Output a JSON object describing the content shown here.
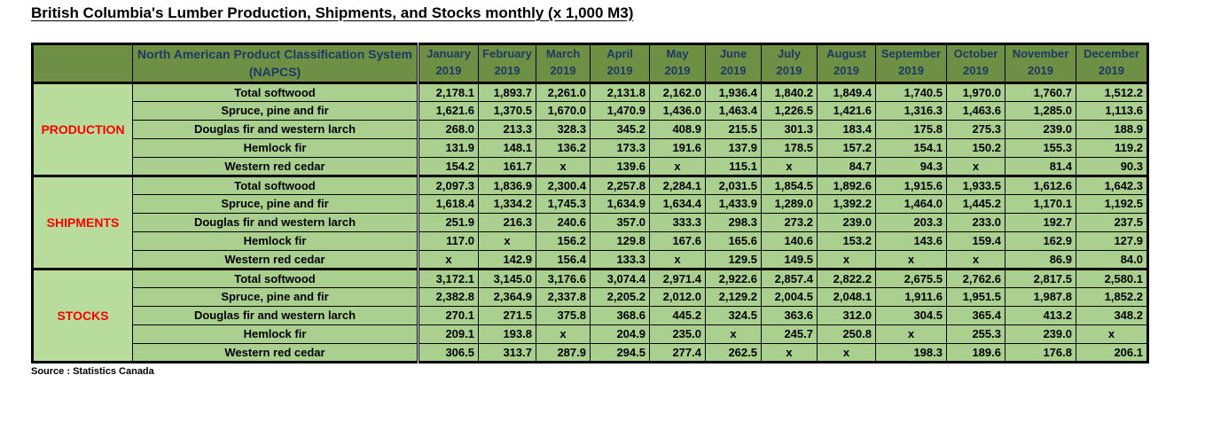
{
  "title": "British Columbia's Lumber Production, Shipments, and Stocks monthly (x 1,000 M3)",
  "source_note": "Source : Statistics Canada",
  "colors": {
    "header_bg": "#6e9044",
    "cell_bg": "#a9d08e",
    "group_col_bg": "#b7dc9b",
    "header_text": "#1f3864",
    "group_label_text": "#ff0000",
    "border": "#000000",
    "page_bg": "#ffffff"
  },
  "chart_data": {
    "type": "table",
    "title": "British Columbia's Lumber Production, Shipments, and Stocks monthly (x 1,000 M3)",
    "unit": "x 1,000 M3",
    "column_header_line1": "North American Product Classification System",
    "column_header_line2": "(NAPCS)",
    "year": "2019",
    "months": [
      "January",
      "February",
      "March",
      "April",
      "May",
      "June",
      "July",
      "August",
      "September",
      "October",
      "November",
      "December"
    ],
    "missing_marker": "x",
    "row_groups": [
      {
        "group": "PRODUCTION",
        "rows": [
          {
            "label": "Total softwood",
            "values": [
              "2,178.1",
              "1,893.7",
              "2,261.0",
              "2,131.8",
              "2,162.0",
              "1,936.4",
              "1,840.2",
              "1,849.4",
              "1,740.5",
              "1,970.0",
              "1,760.7",
              "1,512.2"
            ]
          },
          {
            "label": "Spruce, pine and fir",
            "values": [
              "1,621.6",
              "1,370.5",
              "1,670.0",
              "1,470.9",
              "1,436.0",
              "1,463.4",
              "1,226.5",
              "1,421.6",
              "1,316.3",
              "1,463.6",
              "1,285.0",
              "1,113.6"
            ]
          },
          {
            "label": "Douglas fir and western larch",
            "values": [
              "268.0",
              "213.3",
              "328.3",
              "345.2",
              "408.9",
              "215.5",
              "301.3",
              "183.4",
              "175.8",
              "275.3",
              "239.0",
              "188.9"
            ]
          },
          {
            "label": "Hemlock fir",
            "values": [
              "131.9",
              "148.1",
              "136.2",
              "173.3",
              "191.6",
              "137.9",
              "178.5",
              "157.2",
              "154.1",
              "150.2",
              "155.3",
              "119.2"
            ]
          },
          {
            "label": "Western red cedar",
            "values": [
              "154.2",
              "161.7",
              "x",
              "139.6",
              "x",
              "115.1",
              "x",
              "84.7",
              "94.3",
              "x",
              "81.4",
              "90.3"
            ]
          }
        ]
      },
      {
        "group": "SHIPMENTS",
        "rows": [
          {
            "label": "Total softwood",
            "values": [
              "2,097.3",
              "1,836.9",
              "2,300.4",
              "2,257.8",
              "2,284.1",
              "2,031.5",
              "1,854.5",
              "1,892.6",
              "1,915.6",
              "1,933.5",
              "1,612.6",
              "1,642.3"
            ]
          },
          {
            "label": "Spruce, pine and fir",
            "values": [
              "1,618.4",
              "1,334.2",
              "1,745.3",
              "1,634.9",
              "1,634.4",
              "1,433.9",
              "1,289.0",
              "1,392.2",
              "1,464.0",
              "1,445.2",
              "1,170.1",
              "1,192.5"
            ]
          },
          {
            "label": "Douglas fir and western larch",
            "values": [
              "251.9",
              "216.3",
              "240.6",
              "357.0",
              "333.3",
              "298.3",
              "273.2",
              "239.0",
              "203.3",
              "233.0",
              "192.7",
              "237.5"
            ]
          },
          {
            "label": "Hemlock fir",
            "values": [
              "117.0",
              "x",
              "156.2",
              "129.8",
              "167.6",
              "165.6",
              "140.6",
              "153.2",
              "143.6",
              "159.4",
              "162.9",
              "127.9"
            ]
          },
          {
            "label": "Western red cedar",
            "values": [
              "x",
              "142.9",
              "156.4",
              "133.3",
              "x",
              "129.5",
              "149.5",
              "x",
              "x",
              "x",
              "86.9",
              "84.0"
            ]
          }
        ]
      },
      {
        "group": "STOCKS",
        "rows": [
          {
            "label": "Total softwood",
            "values": [
              "3,172.1",
              "3,145.0",
              "3,176.6",
              "3,074.4",
              "2,971.4",
              "2,922.6",
              "2,857.4",
              "2,822.2",
              "2,675.5",
              "2,762.6",
              "2,817.5",
              "2,580.1"
            ]
          },
          {
            "label": "Spruce, pine and fir",
            "values": [
              "2,382.8",
              "2,364.9",
              "2,337.8",
              "2,205.2",
              "2,012.0",
              "2,129.2",
              "2,004.5",
              "2,048.1",
              "1,911.6",
              "1,951.5",
              "1,987.8",
              "1,852.2"
            ]
          },
          {
            "label": "Douglas fir and western larch",
            "values": [
              "270.1",
              "271.5",
              "375.8",
              "368.6",
              "445.2",
              "324.5",
              "363.6",
              "312.0",
              "304.5",
              "365.4",
              "413.2",
              "348.2"
            ]
          },
          {
            "label": "Hemlock fir",
            "values": [
              "209.1",
              "193.8",
              "x",
              "204.9",
              "235.0",
              "x",
              "245.7",
              "250.8",
              "x",
              "255.3",
              "239.0",
              "x"
            ]
          },
          {
            "label": "Western red cedar",
            "values": [
              "306.5",
              "313.7",
              "287.9",
              "294.5",
              "277.4",
              "262.5",
              "x",
              "x",
              "198.3",
              "189.6",
              "176.8",
              "206.1"
            ]
          }
        ]
      }
    ]
  }
}
